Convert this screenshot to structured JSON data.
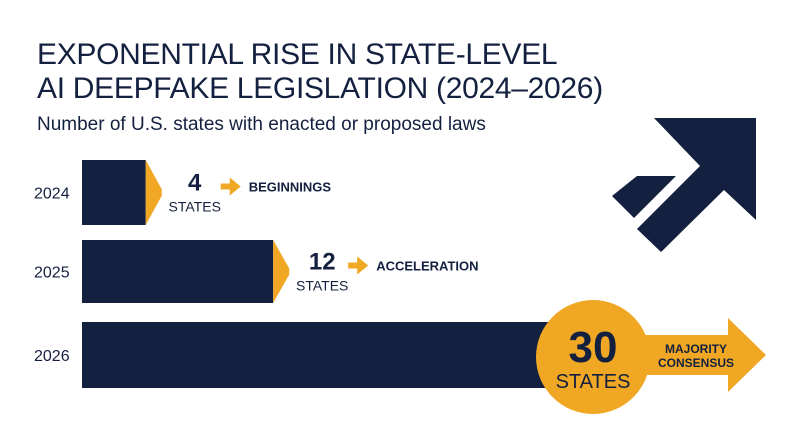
{
  "title_lines": [
    "EXPONENTIAL RISE IN STATE-LEVEL",
    "AI DEEPFAKE LEGISLATION (2024–2026)"
  ],
  "subtitle": "Number of U.S. states with enacted or proposed laws",
  "colors": {
    "navy": "#14203f",
    "accent": "#f0a824",
    "background": "#ffffff"
  },
  "decoration": {
    "icon": "trend-arrow-icon"
  },
  "chart_data": {
    "type": "bar",
    "orientation": "horizontal",
    "title": "EXPONENTIAL RISE IN STATE-LEVEL AI DEEPFAKE LEGISLATION (2024–2026)",
    "subtitle": "Number of U.S. states with enacted or proposed laws",
    "categories": [
      "2024",
      "2025",
      "2026"
    ],
    "values": [
      4,
      12,
      30
    ],
    "value_unit": "STATES",
    "annotations": [
      "BEGINNINGS",
      "ACCELERATION",
      "MAJORITY CONSENSUS"
    ],
    "xlim": [
      0,
      30
    ],
    "grid": false,
    "legend": "none"
  }
}
